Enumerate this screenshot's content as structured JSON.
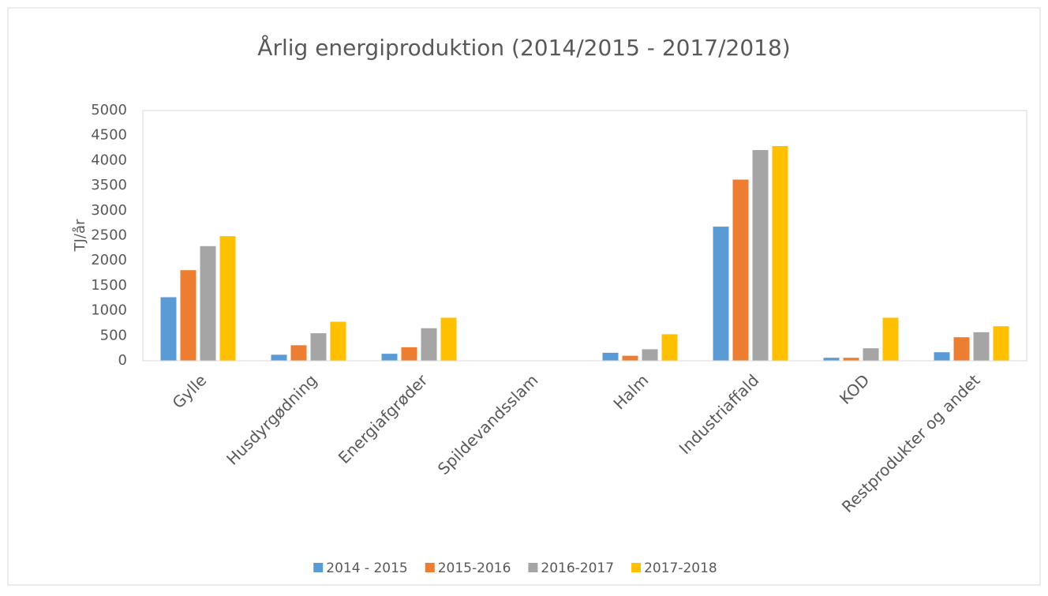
{
  "chart_data": {
    "type": "bar",
    "title": "Årlig energiproduktion (2014/2015 - 2017/2018)",
    "y_label": "TJ/år",
    "categories": [
      "Gylle",
      "Husdyrgødning",
      "Energiafgrøder",
      "Spildevandsslam",
      "Halm",
      "Industriaffald",
      "KOD",
      "Restprodukter og andet"
    ],
    "series": [
      {
        "name": "2014 - 2015",
        "color": "#5b9bd5",
        "values": [
          1270,
          120,
          140,
          0,
          160,
          2680,
          60,
          170
        ]
      },
      {
        "name": "2015-2016",
        "color": "#ed7d31",
        "values": [
          1810,
          310,
          270,
          0,
          100,
          3620,
          60,
          470
        ]
      },
      {
        "name": "2016-2017",
        "color": "#a5a5a5",
        "values": [
          2290,
          550,
          650,
          0,
          230,
          4210,
          250,
          570
        ]
      },
      {
        "name": "2017-2018",
        "color": "#ffc000",
        "values": [
          2490,
          780,
          860,
          0,
          530,
          4290,
          860,
          690
        ]
      }
    ],
    "ylim": [
      0,
      5000
    ],
    "yticks": [
      0,
      500,
      1000,
      1500,
      2000,
      2500,
      3000,
      3500,
      4000,
      4500,
      5000
    ],
    "grid": false,
    "legend": "bottom"
  }
}
